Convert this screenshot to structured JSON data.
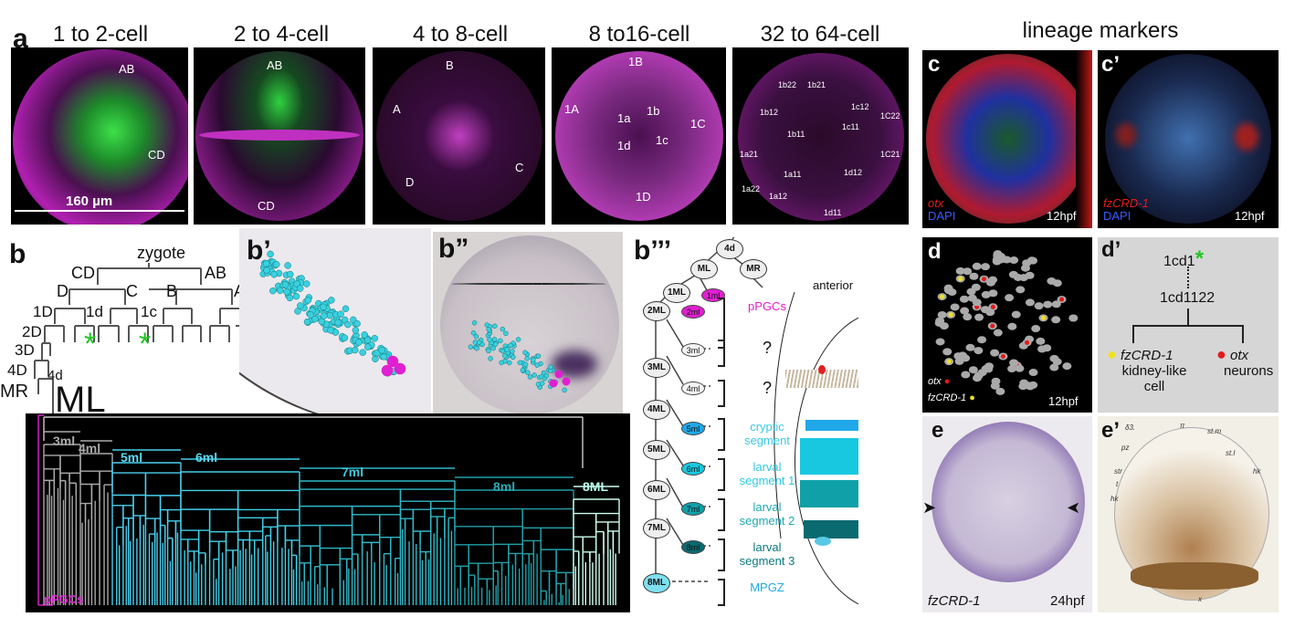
{
  "panel_a": {
    "label": "a",
    "titles": [
      "1 to 2-cell",
      "2 to 4-cell",
      "4 to 8-cell",
      "8 to16-cell",
      "32 to 64-cell"
    ],
    "p1": {
      "ab": "AB",
      "cd": "CD",
      "scale": "160 µm"
    },
    "p2": {
      "ab": "AB",
      "cd": "CD"
    },
    "p3": {
      "a": "A",
      "b": "B",
      "c": "C",
      "d": "D"
    },
    "p4": [
      "1B",
      "1A",
      "1a",
      "1b",
      "1C",
      "1c",
      "1d",
      "1D"
    ],
    "p5": [
      "1b22",
      "1b21",
      "1b12",
      "1b11",
      "1c12",
      "1C22",
      "1c11",
      "1C21",
      "1a21",
      "1a11",
      "1a22",
      "1a12",
      "1d12",
      "1d11"
    ]
  },
  "lineage_title": "lineage markers",
  "panel_c": {
    "label": "c",
    "marker": "otx",
    "stain": "DAPI",
    "time": "12hpf"
  },
  "panel_c2": {
    "label": "c’",
    "marker": "fzCRD-1",
    "stain": "DAPI",
    "time": "12hpf"
  },
  "panel_b": {
    "label": "b",
    "nodes": [
      "zygote",
      "CD",
      "AB",
      "D",
      "C",
      "B",
      "A",
      "1D",
      "1d",
      "1c",
      "2D",
      "3D",
      "4D",
      "4d",
      "MR",
      "ML"
    ],
    "star": "*"
  },
  "panel_b1": {
    "label": "b’"
  },
  "panel_b2": {
    "label": "b”"
  },
  "panel_b3": {
    "label": "b’’’",
    "nodes": [
      "4d",
      "ML",
      "MR",
      "1ML",
      "1ml",
      "2ML",
      "2ml",
      "3ml",
      "3ML",
      "4ml",
      "4ML",
      "5ml",
      "5ML",
      "6ml",
      "6ML",
      "7ml",
      "7ML",
      "8ml",
      "8ML"
    ],
    "groups": [
      "pPGCs",
      "?",
      "?",
      "cryptic segment",
      "larval segment 1",
      "larval segment 2",
      "larval segment 3",
      "MPGZ"
    ],
    "anterior": "anterior"
  },
  "dendrogram": {
    "labels": [
      "3ml",
      "4ml",
      "5ml",
      "6ml",
      "7ml",
      "8ml",
      "8ML",
      "pPGCs"
    ]
  },
  "panel_d": {
    "label": "d",
    "legend": [
      "otx",
      "fzCRD-1"
    ],
    "time": "12hpf"
  },
  "panel_d2": {
    "label": "d’",
    "root": "1cd1",
    "child": "1cd1122",
    "left_gene": "fzCRD-1",
    "left_fate": "kidney-like cell",
    "right_gene": "otx",
    "right_fate": "neurons"
  },
  "panel_e": {
    "label": "e",
    "gene": "fzCRD-1",
    "time": "24hpf"
  },
  "panel_e2": {
    "label": "e’",
    "annot": [
      "δ3.",
      "π",
      "st.m",
      "pz",
      "st.l",
      "str",
      "t",
      "hk",
      "hk",
      "x"
    ]
  },
  "colors": {
    "magenta": "#e020d0",
    "cyan": "#3ad0e0",
    "green": "#22c422",
    "red": "#e41a1a",
    "yellow": "#f0e020"
  }
}
